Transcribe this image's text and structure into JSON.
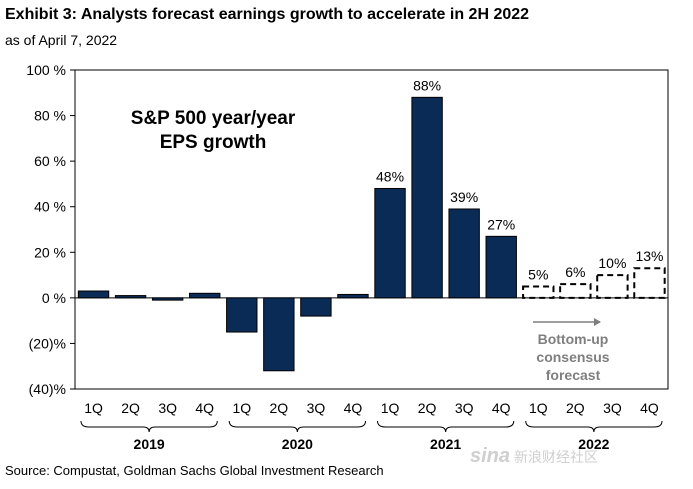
{
  "title": "Exhibit 3: Analysts forecast earnings growth to accelerate in 2H 2022",
  "subtitle": "as of April 7, 2022",
  "source": "Source: Compustat, Goldman Sachs Global Investment Research",
  "watermark": {
    "logo": "sina",
    "text": "新浪财经社区"
  },
  "colors": {
    "bar": "#0b2b57",
    "forecast_outline": "#000000",
    "forecast_text": "#7f7f7f"
  },
  "chart_data": {
    "type": "bar",
    "series_title": "S&P 500 year/year\nEPS growth",
    "ylim": [
      -40,
      100
    ],
    "yticks": [
      -40,
      -20,
      0,
      20,
      40,
      60,
      80,
      100
    ],
    "ytick_labels": [
      "(40)%",
      "(20)%",
      "0 %",
      "20 %",
      "40 %",
      "60 %",
      "80 %",
      "100 %"
    ],
    "categories": [
      "1Q",
      "2Q",
      "3Q",
      "4Q",
      "1Q",
      "2Q",
      "3Q",
      "4Q",
      "1Q",
      "2Q",
      "3Q",
      "4Q",
      "1Q",
      "2Q",
      "3Q",
      "4Q"
    ],
    "years": [
      "2019",
      "2020",
      "2021",
      "2022"
    ],
    "values": [
      3,
      1,
      -1,
      2,
      -15,
      -32,
      -8,
      1.5,
      48,
      88,
      39,
      27,
      5,
      6,
      10,
      13
    ],
    "data_labels": [
      "",
      "",
      "",
      "",
      "",
      "",
      "",
      "",
      "48%",
      "88%",
      "39%",
      "27%",
      "5%",
      "6%",
      "10%",
      "13%"
    ],
    "forecast": [
      false,
      false,
      false,
      false,
      false,
      false,
      false,
      false,
      false,
      false,
      false,
      false,
      true,
      true,
      true,
      true
    ],
    "annotation": "Bottom-up\nconsensus\nforecast",
    "grid": false,
    "legend": "none"
  }
}
